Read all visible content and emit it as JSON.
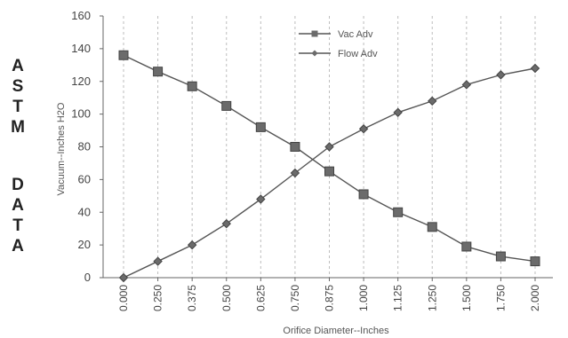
{
  "side_title_lines": [
    "A",
    "S",
    "T",
    "M",
    "",
    "D",
    "A",
    "T",
    "A"
  ],
  "chart_data": {
    "type": "line",
    "xlabel": "Orifice Diameter--Inches",
    "ylabel": "Vacuum--Inches H2O",
    "categories": [
      "0.000",
      "0.250",
      "0.375",
      "0.500",
      "0.625",
      "0.750",
      "0.875",
      "1.000",
      "1.125",
      "1.250",
      "1.500",
      "1.750",
      "2.000"
    ],
    "ylim": [
      0,
      160
    ],
    "yticks": [
      0,
      20,
      40,
      60,
      80,
      100,
      120,
      140,
      160
    ],
    "grid": "vertical dashed",
    "legend_position": "top-center",
    "series": [
      {
        "name": "Vac Adv",
        "marker": "square",
        "color": "#555555",
        "values": [
          136,
          126,
          117,
          105,
          92,
          80,
          65,
          51,
          40,
          31,
          19,
          13,
          10
        ]
      },
      {
        "name": "Flow Adv",
        "marker": "diamond",
        "color": "#555555",
        "values": [
          0,
          10,
          20,
          33,
          48,
          64,
          80,
          91,
          101,
          108,
          118,
          124,
          128
        ]
      }
    ]
  }
}
